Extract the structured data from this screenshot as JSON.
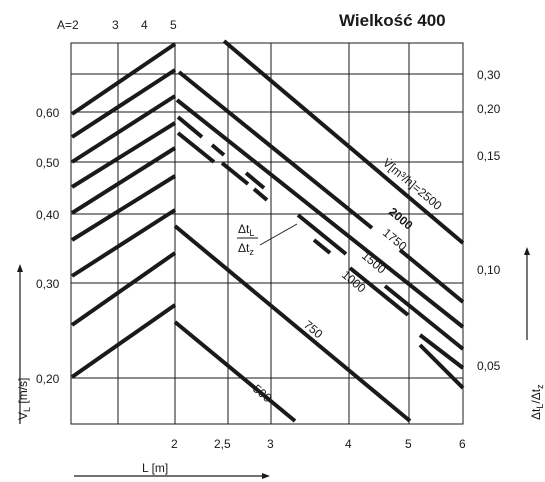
{
  "chart_data": {
    "type": "line",
    "title": "Wielkość 400",
    "xlabel": "L  [m]",
    "ylabel_left": "V_L [m/s]",
    "ylabel_right": "Δt_L/Δt_z",
    "x_ticks": [
      "2",
      "2,5",
      "3",
      "4",
      "5",
      "6"
    ],
    "top_ticks": [
      "A=2",
      "3",
      "4",
      "5"
    ],
    "left_ticks": [
      "0,60",
      "0,50",
      "0,40",
      "0,30",
      "0,20"
    ],
    "right_ticks": [
      "0,30",
      "0,20",
      "0,15",
      "0,10",
      "0,05"
    ],
    "flow_lines": [
      {
        "name": "500",
        "label": "500"
      },
      {
        "name": "750",
        "label": "750"
      },
      {
        "name": "1000",
        "label": "1000"
      },
      {
        "name": "1500",
        "label": "1500"
      },
      {
        "name": "1750",
        "label": "1750"
      },
      {
        "name": "2000",
        "label": "2000"
      },
      {
        "name": "2500",
        "label": "V̇[m³/h]=2500"
      }
    ],
    "ratio_label": {
      "num": "Δtₗ",
      "den": "Δtₓ"
    }
  }
}
